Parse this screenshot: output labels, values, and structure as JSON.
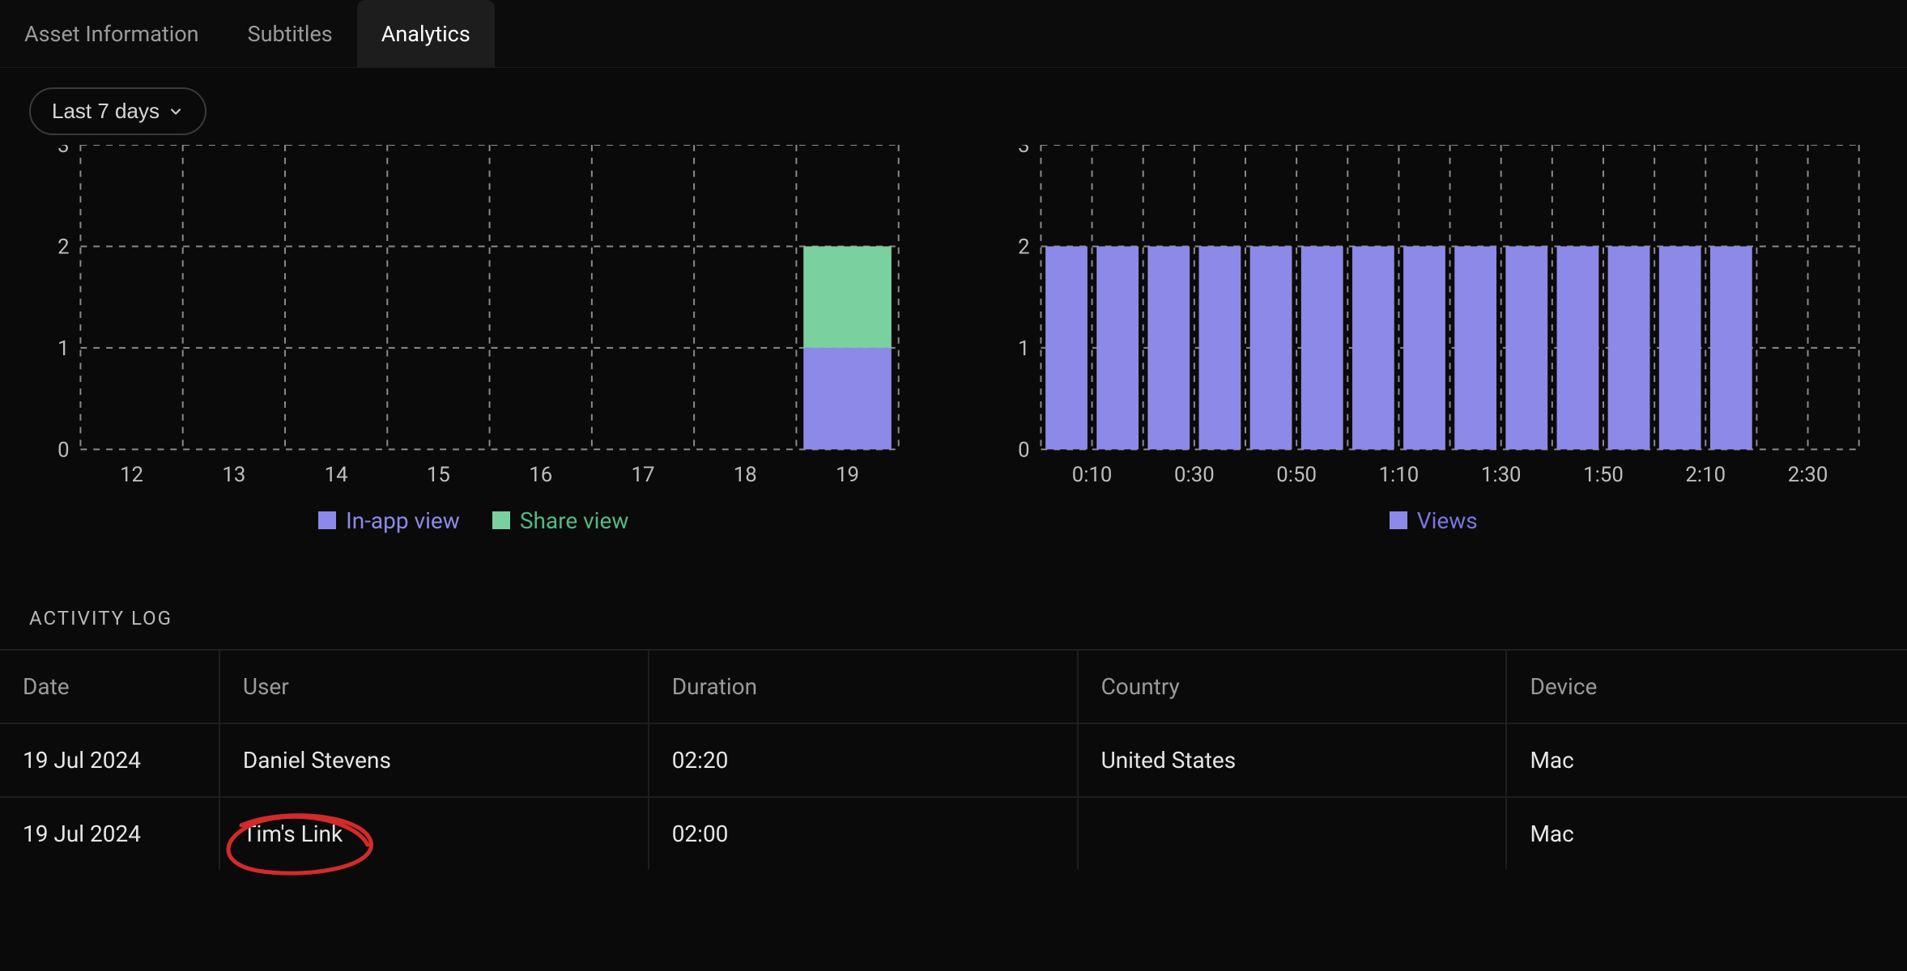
{
  "tabs": {
    "items": [
      {
        "label": "Asset Information",
        "active": false
      },
      {
        "label": "Subtitles",
        "active": false
      },
      {
        "label": "Analytics",
        "active": true
      }
    ]
  },
  "filter": {
    "label": "Last 7 days"
  },
  "left_chart": {
    "type": "stacked-bar",
    "x_labels": [
      "12",
      "13",
      "14",
      "15",
      "16",
      "17",
      "18",
      "19"
    ],
    "y_ticks": [
      0,
      1,
      2
    ],
    "y_max_label_guess": 3,
    "bars": [
      {
        "x": "12",
        "in_app": 0,
        "share": 0
      },
      {
        "x": "13",
        "in_app": 0,
        "share": 0
      },
      {
        "x": "14",
        "in_app": 0,
        "share": 0
      },
      {
        "x": "15",
        "in_app": 0,
        "share": 0
      },
      {
        "x": "16",
        "in_app": 0,
        "share": 0
      },
      {
        "x": "17",
        "in_app": 0,
        "share": 0
      },
      {
        "x": "18",
        "in_app": 0,
        "share": 0
      },
      {
        "x": "19",
        "in_app": 1,
        "share": 1
      }
    ],
    "colors": {
      "in_app": "#8d89e8",
      "share": "#7bd0a0"
    },
    "grid_color": "#8a8a8a",
    "background": "#0a0a0a",
    "bar_width_ratio": 0.86,
    "axis_fontsize_px": 26,
    "legend": [
      {
        "key": "in_app",
        "label": "In-app view",
        "text_color": "#8d89e8"
      },
      {
        "key": "share",
        "label": "Share view",
        "text_color": "#52b884"
      }
    ]
  },
  "right_chart": {
    "type": "bar",
    "x_labels": [
      "0:10",
      "0:30",
      "0:50",
      "1:10",
      "1:30",
      "1:50",
      "2:10",
      "2:30"
    ],
    "y_ticks": [
      0,
      1,
      2
    ],
    "y_max_label_guess": 3,
    "bar_count": 14,
    "bar_value": 2,
    "color": "#8d89e8",
    "grid_color": "#8a8a8a",
    "background": "#0a0a0a",
    "bar_width_ratio": 0.82,
    "axis_fontsize_px": 26,
    "legend": [
      {
        "key": "views",
        "label": "Views",
        "text_color": "#7a75e0"
      }
    ]
  },
  "activity_log": {
    "title": "ACTIVITY LOG",
    "columns": [
      "Date",
      "User",
      "Duration",
      "Country",
      "Device"
    ],
    "column_widths_pct": [
      11.5,
      22.5,
      22.5,
      22.5,
      21
    ],
    "rows": [
      {
        "date": "19 Jul 2024",
        "user": "Daniel Stevens",
        "duration": "02:20",
        "country": "United States",
        "device": "Mac"
      },
      {
        "date": "19 Jul 2024",
        "user": "Tim's Link",
        "duration": "02:00",
        "country": "",
        "device": "Mac"
      }
    ]
  },
  "annotation": {
    "ellipse_stroke": "#d42a2a",
    "ellipse_width": 5
  }
}
